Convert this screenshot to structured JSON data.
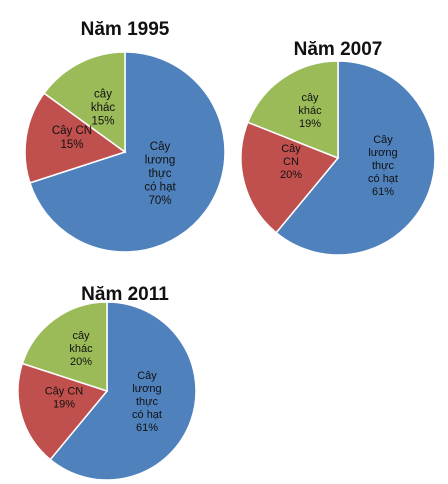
{
  "chart_data": [
    {
      "type": "pie",
      "title": "Năm 1995",
      "slices": [
        {
          "lines": [
            "Cây",
            "lương",
            "thực",
            "có hạt",
            "70%"
          ],
          "value": 70,
          "color": "#4f81bd"
        },
        {
          "lines": [
            "Cây CN",
            "15%"
          ],
          "value": 15,
          "color": "#c0504d"
        },
        {
          "lines": [
            "cây",
            "khác",
            "15%"
          ],
          "value": 15,
          "color": "#9bbb59"
        }
      ]
    },
    {
      "type": "pie",
      "title": "Năm 2007",
      "slices": [
        {
          "lines": [
            "Cây",
            "lương",
            "thực",
            "có hạt",
            "61%"
          ],
          "value": 61,
          "color": "#4f81bd"
        },
        {
          "lines": [
            "Cây",
            "CN",
            "20%"
          ],
          "value": 20,
          "color": "#c0504d"
        },
        {
          "lines": [
            "cây",
            "khác",
            "19%"
          ],
          "value": 19,
          "color": "#9bbb59"
        }
      ]
    },
    {
      "type": "pie",
      "title": "Năm 2011",
      "slices": [
        {
          "lines": [
            "Cây",
            "lương",
            "thực",
            "có hạt",
            "61%"
          ],
          "value": 61,
          "color": "#4f81bd"
        },
        {
          "lines": [
            "Cây CN",
            "19%"
          ],
          "value": 19,
          "color": "#c0504d"
        },
        {
          "lines": [
            "cây",
            "khác",
            "20%"
          ],
          "value": 20,
          "color": "#9bbb59"
        }
      ]
    }
  ]
}
